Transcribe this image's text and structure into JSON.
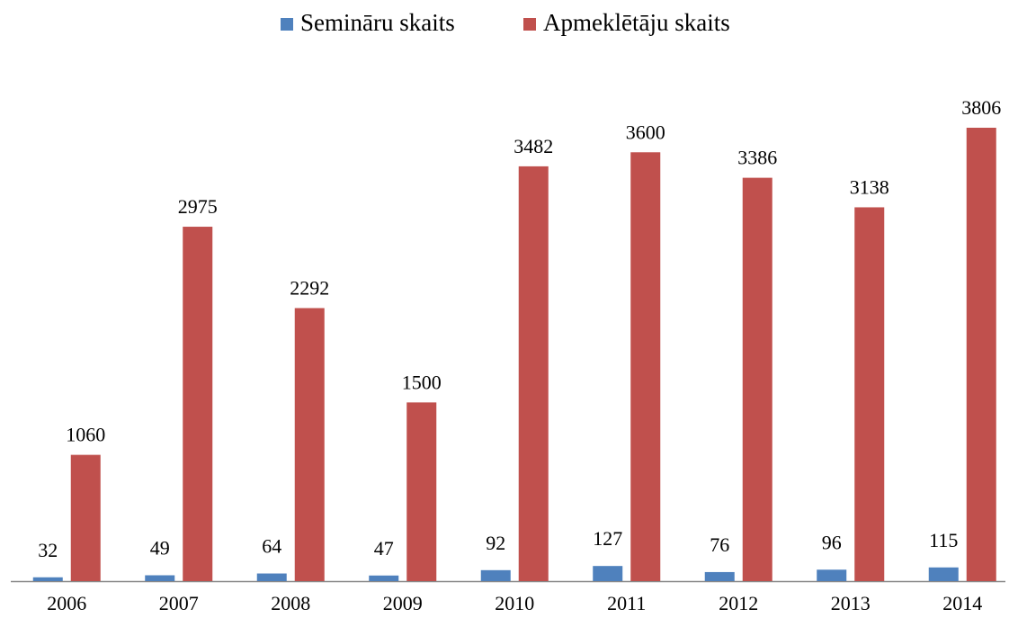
{
  "chart_data": {
    "type": "bar",
    "categories": [
      "2006",
      "2007",
      "2008",
      "2009",
      "2010",
      "2011",
      "2012",
      "2013",
      "2014"
    ],
    "series": [
      {
        "name": "Semināru skaits",
        "color": "#4f81bd",
        "values": [
          32,
          49,
          64,
          47,
          92,
          127,
          76,
          96,
          115
        ]
      },
      {
        "name": "Apmeklētāju skaits",
        "color": "#c0504d",
        "values": [
          1060,
          2975,
          2292,
          1500,
          3482,
          3600,
          3386,
          3138,
          3806
        ]
      }
    ],
    "legend": "top"
  }
}
